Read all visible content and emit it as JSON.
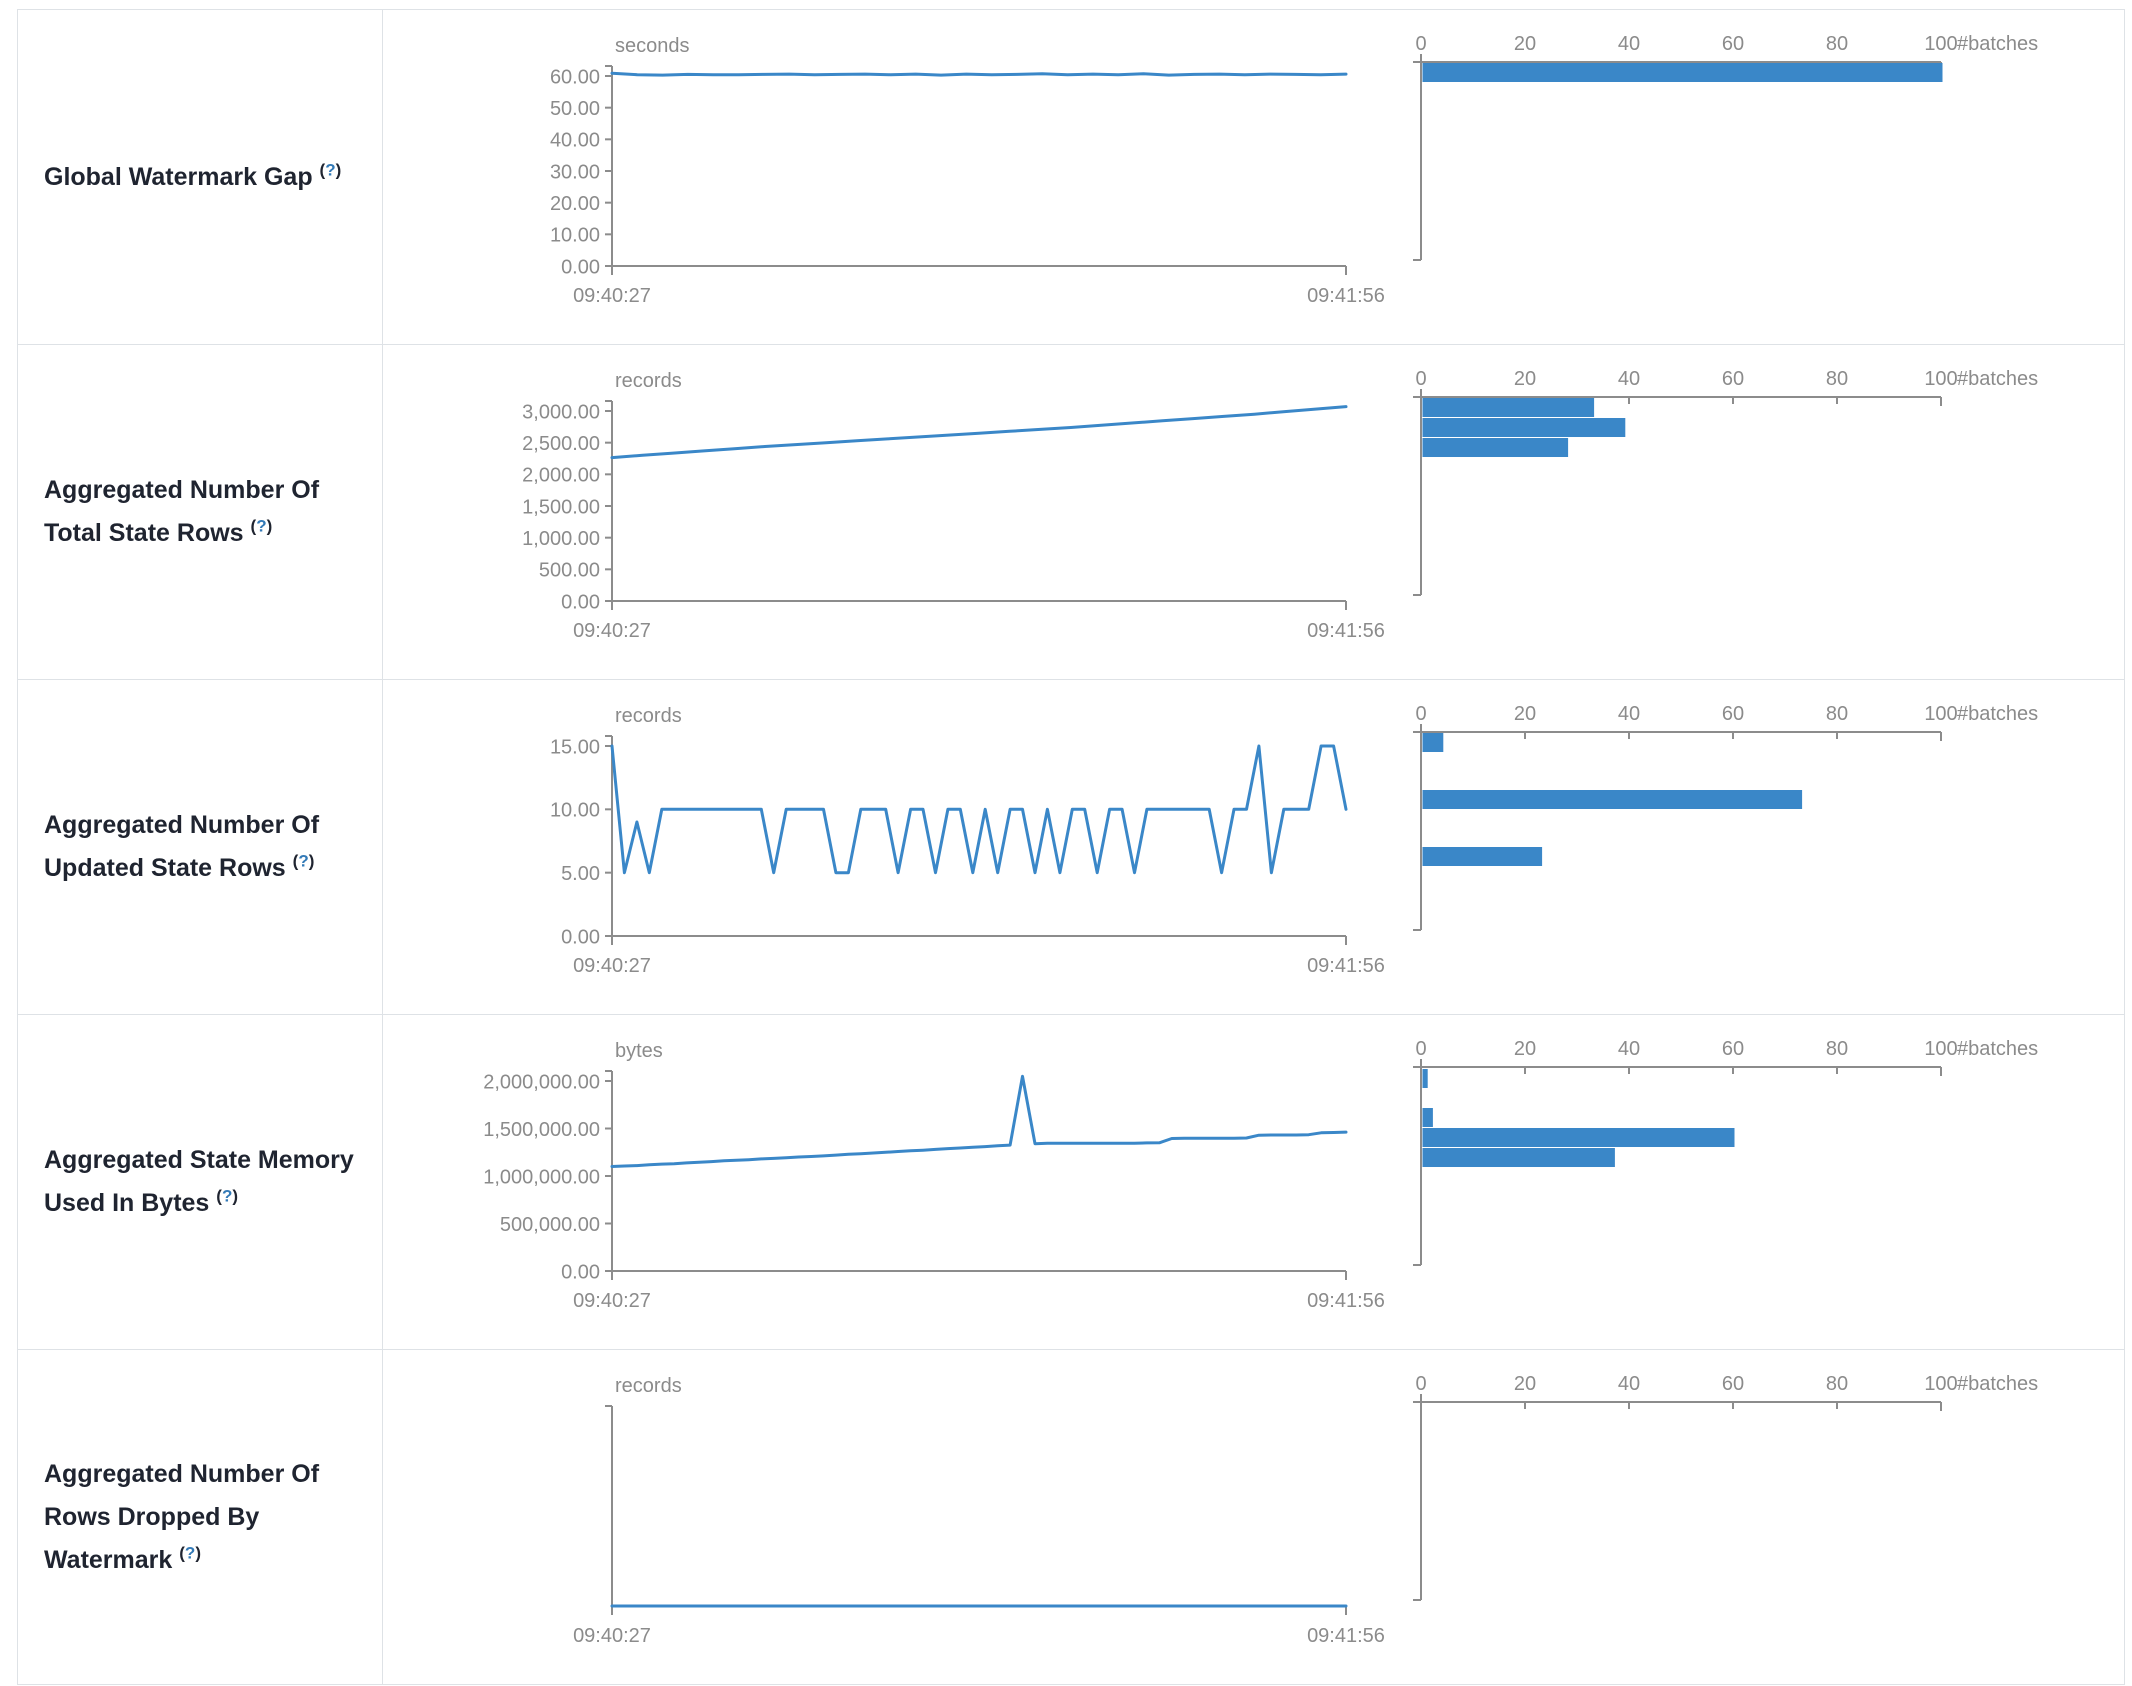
{
  "colors": {
    "accent_blue": "#3a87c8",
    "help_link_blue": "#337ab7",
    "axis_gray": "#8c8c8c",
    "chart_text_gray": "#8b8b8b",
    "label_dark": "#1f2430",
    "border_gray": "#dee2e6"
  },
  "help": {
    "open": "(",
    "q": "?",
    "close": ")"
  },
  "time_axis": {
    "start": "09:40:27",
    "end": "09:41:56"
  },
  "histogram_axis": {
    "ticks": [
      "0",
      "20",
      "40",
      "60",
      "80",
      "100"
    ],
    "max": 100,
    "label": "#batches"
  },
  "rows": [
    {
      "label": "Global Watermark Gap",
      "timeline": {
        "type": "line",
        "unit": "seconds",
        "yticks": [
          "60.00",
          "50.00",
          "40.00",
          "30.00",
          "20.00",
          "10.00",
          "0.00"
        ],
        "ymax_tick": 60,
        "values": [
          60.9,
          60.4,
          60.3,
          60.5,
          60.4,
          60.4,
          60.5,
          60.6,
          60.4,
          60.5,
          60.6,
          60.4,
          60.6,
          60.3,
          60.6,
          60.4,
          60.5,
          60.7,
          60.4,
          60.6,
          60.4,
          60.7,
          60.3,
          60.5,
          60.6,
          60.4,
          60.6,
          60.5,
          60.4,
          60.6
        ]
      },
      "histogram": {
        "type": "bar",
        "bars": [
          {
            "approx_value": 60,
            "count": 100,
            "dy": 1
          }
        ]
      }
    },
    {
      "label": "Aggregated Number Of Total State Rows",
      "timeline": {
        "type": "line",
        "unit": "records",
        "yticks": [
          "3,000.00",
          "2,500.00",
          "2,000.00",
          "1,500.00",
          "1,000.00",
          "500.00",
          "0.00"
        ],
        "ymax_tick": 3000,
        "values": [
          2265,
          2300,
          2335,
          2370,
          2405,
          2440,
          2470,
          2500,
          2530,
          2560,
          2590,
          2620,
          2650,
          2680,
          2710,
          2740,
          2775,
          2810,
          2845,
          2880,
          2915,
          2950,
          2990,
          3030,
          3070
        ]
      },
      "histogram": {
        "type": "bar",
        "bars": [
          {
            "approx_value": 3000,
            "count": 33,
            "dy": 1
          },
          {
            "approx_value": 2750,
            "count": 39,
            "dy": 21
          },
          {
            "approx_value": 2450,
            "count": 28,
            "dy": 41
          }
        ]
      }
    },
    {
      "label": "Aggregated Number Of Updated State Rows",
      "timeline": {
        "type": "line",
        "unit": "records",
        "yticks": [
          "15.00",
          "10.00",
          "5.00",
          "0.00"
        ],
        "ymax_tick": 15,
        "values": [
          15,
          5,
          9,
          5,
          10,
          10,
          10,
          10,
          10,
          10,
          10,
          10,
          10,
          5,
          10,
          10,
          10,
          10,
          5,
          5,
          10,
          10,
          10,
          5,
          10,
          10,
          5,
          10,
          10,
          5,
          10,
          5,
          10,
          10,
          5,
          10,
          5,
          10,
          10,
          5,
          10,
          10,
          5,
          10,
          10,
          10,
          10,
          10,
          10,
          5,
          10,
          10,
          15,
          5,
          10,
          10,
          10,
          15,
          15,
          10
        ]
      },
      "histogram": {
        "type": "bar",
        "bars": [
          {
            "approx_value": 15,
            "count": 4,
            "dy": 1
          },
          {
            "approx_value": 10,
            "count": 73,
            "dy": 58
          },
          {
            "approx_value": 5,
            "count": 23,
            "dy": 115
          }
        ]
      }
    },
    {
      "label": "Aggregated State Memory Used In Bytes",
      "timeline": {
        "type": "line",
        "unit": "bytes",
        "yticks": [
          "2,000,000.00",
          "1,500,000.00",
          "1,000,000.00",
          "500,000.00",
          "0.00"
        ],
        "ymax_tick": 2000000,
        "values": [
          1100000,
          1105000,
          1110000,
          1118000,
          1125000,
          1130000,
          1138000,
          1145000,
          1152000,
          1160000,
          1165000,
          1172000,
          1180000,
          1185000,
          1192000,
          1200000,
          1205000,
          1212000,
          1220000,
          1228000,
          1235000,
          1242000,
          1250000,
          1258000,
          1265000,
          1272000,
          1280000,
          1288000,
          1295000,
          1302000,
          1310000,
          1318000,
          1325000,
          2050000,
          1340000,
          1345000,
          1345000,
          1345000,
          1345000,
          1345000,
          1345000,
          1345000,
          1345000,
          1348000,
          1350000,
          1395000,
          1398000,
          1398000,
          1398000,
          1398000,
          1398000,
          1400000,
          1430000,
          1432000,
          1432000,
          1432000,
          1435000,
          1455000,
          1458000,
          1462000
        ]
      },
      "histogram": {
        "type": "bar",
        "bars": [
          {
            "approx_value": 2050000,
            "count": 1,
            "dy": 2
          },
          {
            "approx_value": 1700000,
            "count": 2,
            "dy": 41
          },
          {
            "approx_value": 1450000,
            "count": 60,
            "dy": 61
          },
          {
            "approx_value": 1200000,
            "count": 37,
            "dy": 81
          }
        ]
      }
    },
    {
      "label": "Aggregated Number Of Rows Dropped By Watermark",
      "timeline": {
        "type": "line",
        "unit": "records",
        "yticks": [],
        "ymax_tick": 1,
        "values": [
          0,
          0,
          0,
          0,
          0,
          0,
          0,
          0,
          0,
          0
        ]
      },
      "histogram": {
        "type": "bar",
        "bars": []
      }
    }
  ]
}
